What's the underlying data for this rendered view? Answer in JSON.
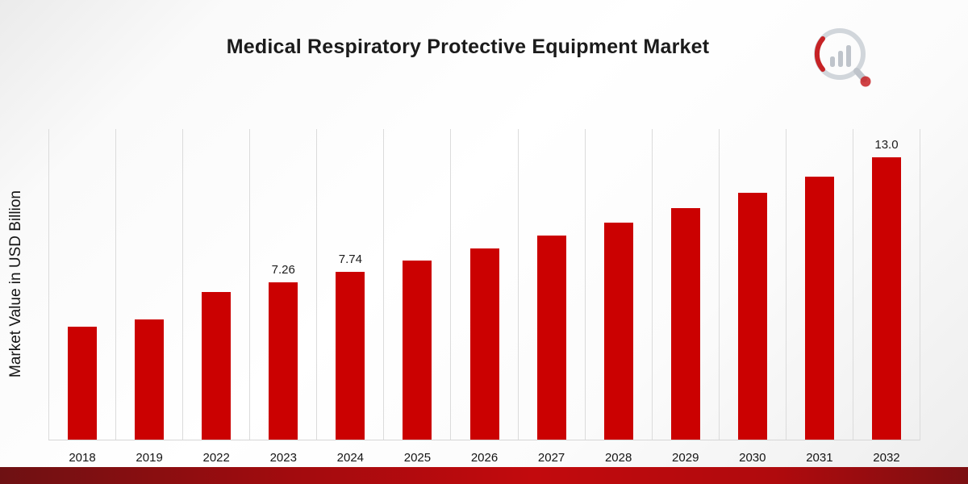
{
  "title": "Medical Respiratory Protective Equipment Market",
  "logo": {
    "name": "market-research-future-logo"
  },
  "colors": {
    "bar": "#CB0101",
    "gridline": "#DBDBDB",
    "stripe_dark": "#6E1113",
    "stripe_bright": "#C20A0D",
    "logo_gray": "#B9BFC6",
    "logo_red": "#C10B0E"
  },
  "chart_data": {
    "type": "bar",
    "title": "Medical Respiratory Protective Equipment Market",
    "xlabel": "",
    "ylabel": "Market Value in USD Billion",
    "categories": [
      "2018",
      "2019",
      "2022",
      "2023",
      "2024",
      "2025",
      "2026",
      "2027",
      "2028",
      "2029",
      "2030",
      "2031",
      "2032"
    ],
    "values": [
      5.2,
      5.55,
      6.8,
      7.26,
      7.74,
      8.25,
      8.8,
      9.38,
      10.0,
      10.66,
      11.36,
      12.1,
      13.0
    ],
    "data_labels": {
      "2023": "7.26",
      "2024": "7.74",
      "2032": "13.0"
    },
    "ylim": [
      0,
      14.3
    ],
    "grid": "vertical",
    "legend": "none",
    "bar_color": "#CB0101"
  }
}
